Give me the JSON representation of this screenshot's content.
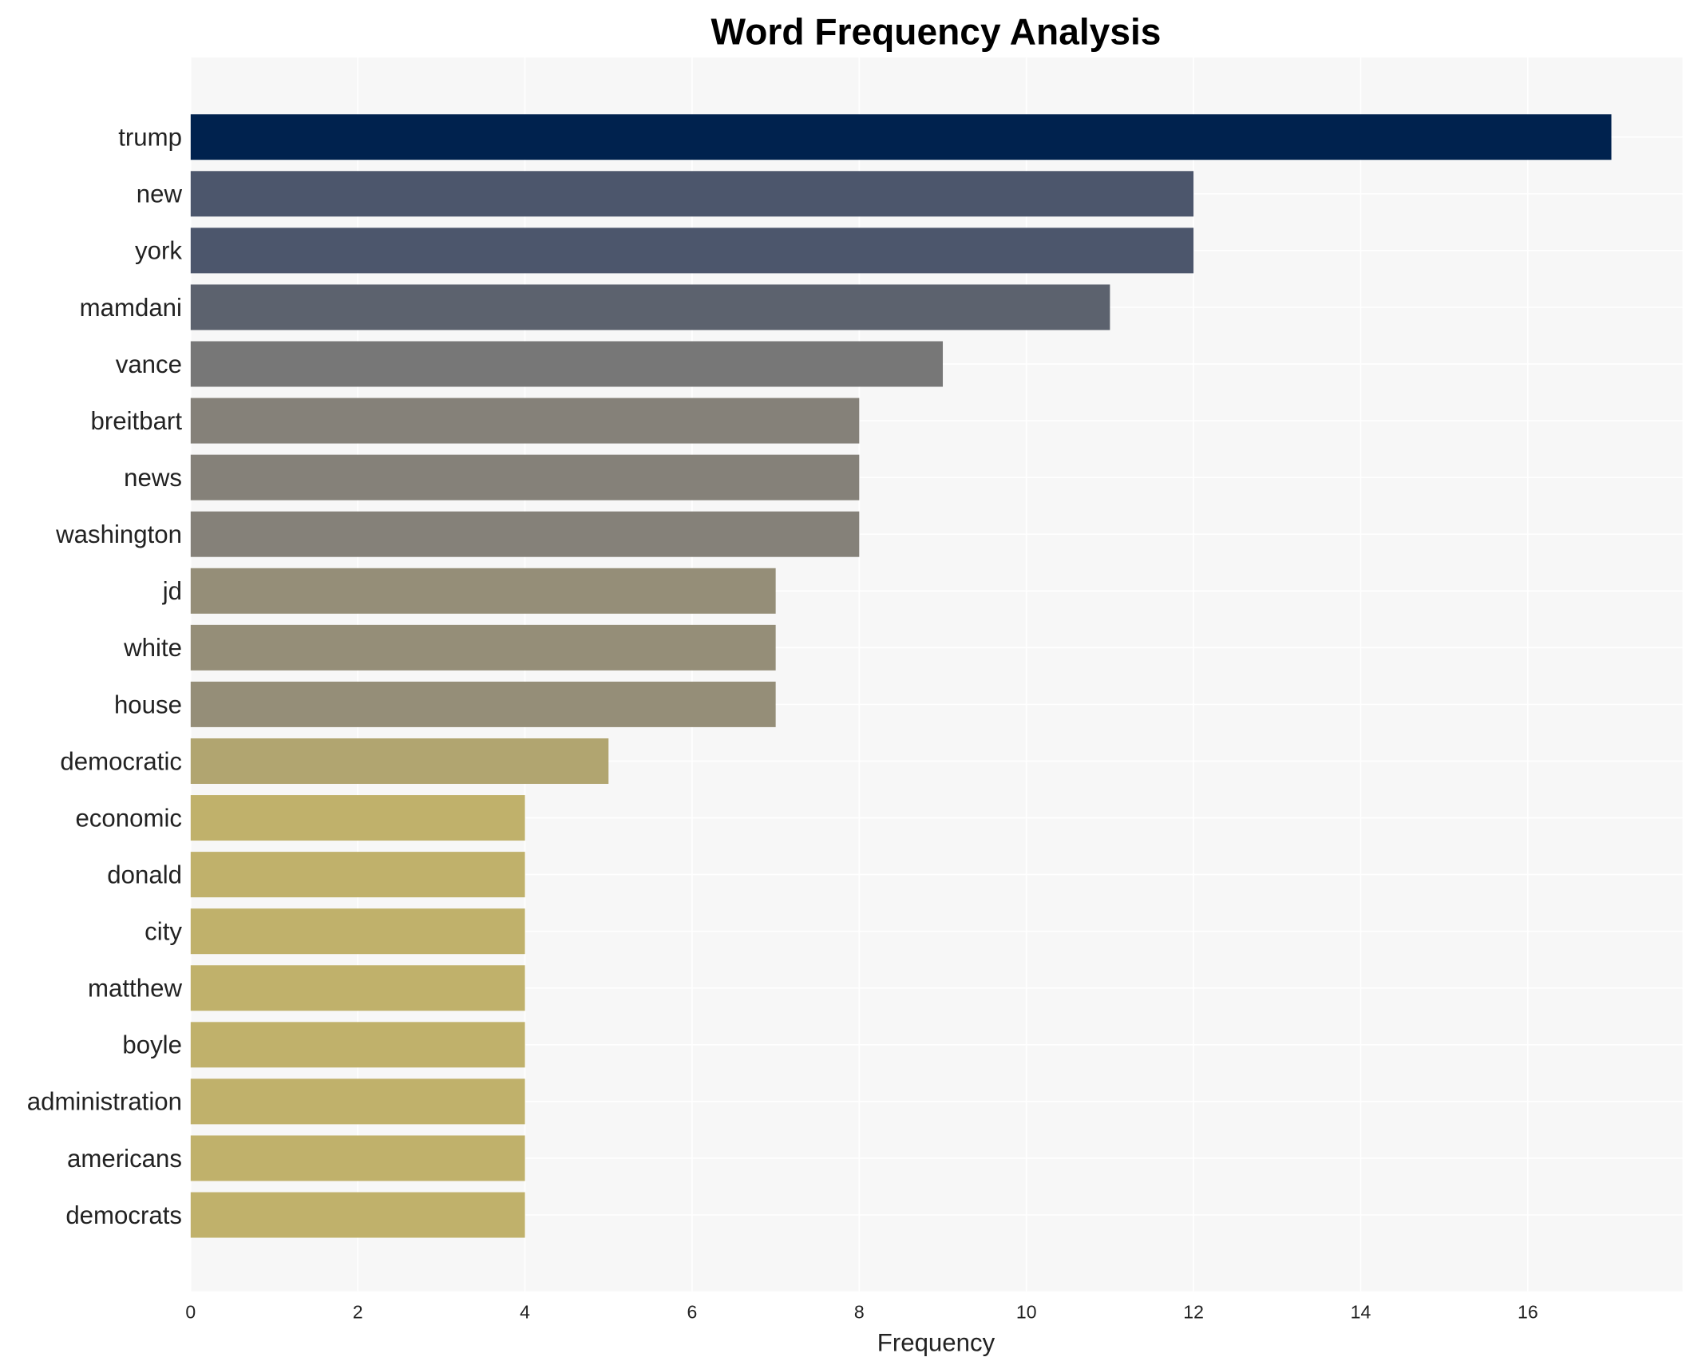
{
  "chart_data": {
    "type": "bar",
    "orientation": "horizontal",
    "title": "Word Frequency Analysis",
    "xlabel": "Frequency",
    "ylabel": "",
    "xlim": [
      0,
      17.85
    ],
    "xticks": [
      0,
      2,
      4,
      6,
      8,
      10,
      12,
      14,
      16
    ],
    "grid": true,
    "categories": [
      "trump",
      "new",
      "york",
      "mamdani",
      "vance",
      "breitbart",
      "news",
      "washington",
      "jd",
      "white",
      "house",
      "democratic",
      "economic",
      "donald",
      "city",
      "matthew",
      "boyle",
      "administration",
      "americans",
      "democrats"
    ],
    "values": [
      17,
      12,
      12,
      11,
      9,
      8,
      8,
      8,
      7,
      7,
      7,
      5,
      4,
      4,
      4,
      4,
      4,
      4,
      4,
      4
    ],
    "colors": [
      "#00224e",
      "#4c566c",
      "#4c566c",
      "#5c626e",
      "#777777",
      "#858179",
      "#858179",
      "#858179",
      "#958e78",
      "#958e78",
      "#958e78",
      "#b1a570",
      "#c0b16b",
      "#c0b16b",
      "#c0b16b",
      "#c0b16b",
      "#c0b16b",
      "#c0b16b",
      "#c0b16b",
      "#c0b16b"
    ],
    "background": "#f7f7f7"
  }
}
